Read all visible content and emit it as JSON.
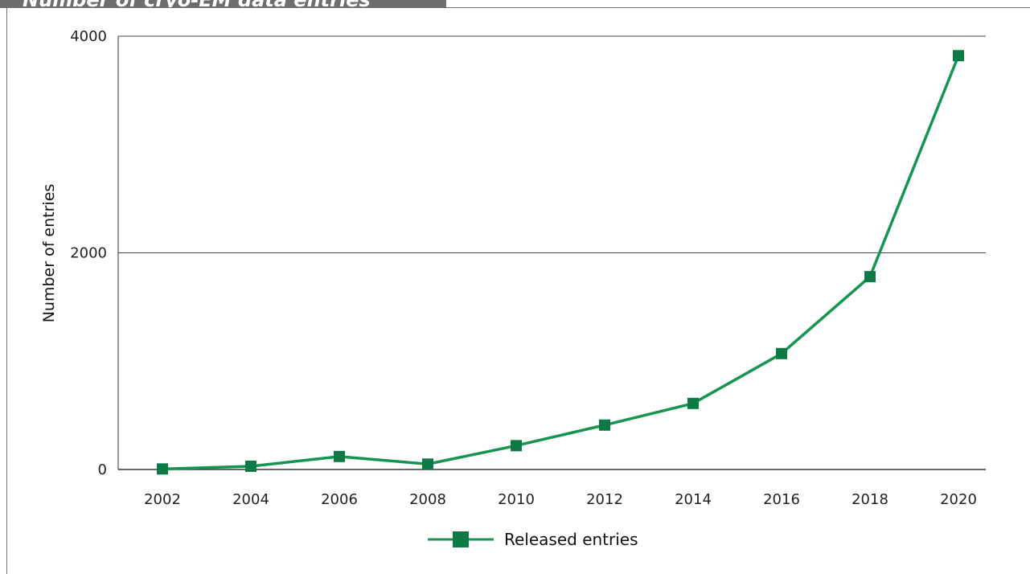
{
  "title": "Number of cryo-EM data entries",
  "colors": {
    "series": "#15954f",
    "marker": "#0d7a45",
    "axis": "#333333",
    "frame": "#6e6e6e"
  },
  "chart_data": {
    "type": "line",
    "title": "Number of cryo-EM data entries",
    "xlabel": "",
    "ylabel": "Number of entries",
    "categories": [
      "2002",
      "2004",
      "2006",
      "2008",
      "2010",
      "2012",
      "2014",
      "2016",
      "2018",
      "2020"
    ],
    "yticks": [
      "0",
      "2000",
      "4000"
    ],
    "ylim": [
      0,
      4000
    ],
    "grid": "horizontal",
    "legend": "bottom-center",
    "series": [
      {
        "name": "Released entries",
        "marker": "square",
        "values": [
          5,
          30,
          120,
          50,
          220,
          410,
          610,
          1070,
          1780,
          3820
        ]
      }
    ]
  }
}
